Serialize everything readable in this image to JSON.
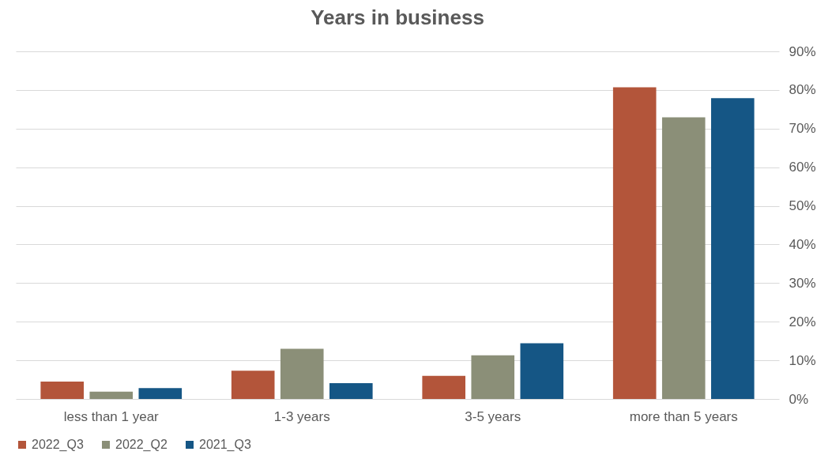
{
  "chart_data": {
    "type": "bar",
    "title": "Years in business",
    "categories": [
      "less than 1 year",
      "1-3 years",
      "3-5 years",
      "more than 5 years"
    ],
    "series": [
      {
        "name": "2022_Q3",
        "color": "#b3553a",
        "values": [
          4.5,
          7.3,
          6,
          80.7
        ]
      },
      {
        "name": "2022_Q2",
        "color": "#8b8f78",
        "values": [
          1.9,
          13,
          11.3,
          72.9
        ]
      },
      {
        "name": "2021_Q3",
        "color": "#155685",
        "values": [
          2.8,
          4.1,
          14.4,
          77.9
        ]
      }
    ],
    "ylim": [
      0,
      90
    ],
    "yticks": [
      {
        "value": 0,
        "label": "0%"
      },
      {
        "value": 10,
        "label": "10%"
      },
      {
        "value": 20,
        "label": "20%"
      },
      {
        "value": 30,
        "label": "30%"
      },
      {
        "value": 40,
        "label": "40%"
      },
      {
        "value": 50,
        "label": "50%"
      },
      {
        "value": 60,
        "label": "60%"
      },
      {
        "value": 70,
        "label": "70%"
      },
      {
        "value": 80,
        "label": "80%"
      },
      {
        "value": 90,
        "label": "90%"
      }
    ],
    "grid": "y",
    "legend": "bottom"
  }
}
